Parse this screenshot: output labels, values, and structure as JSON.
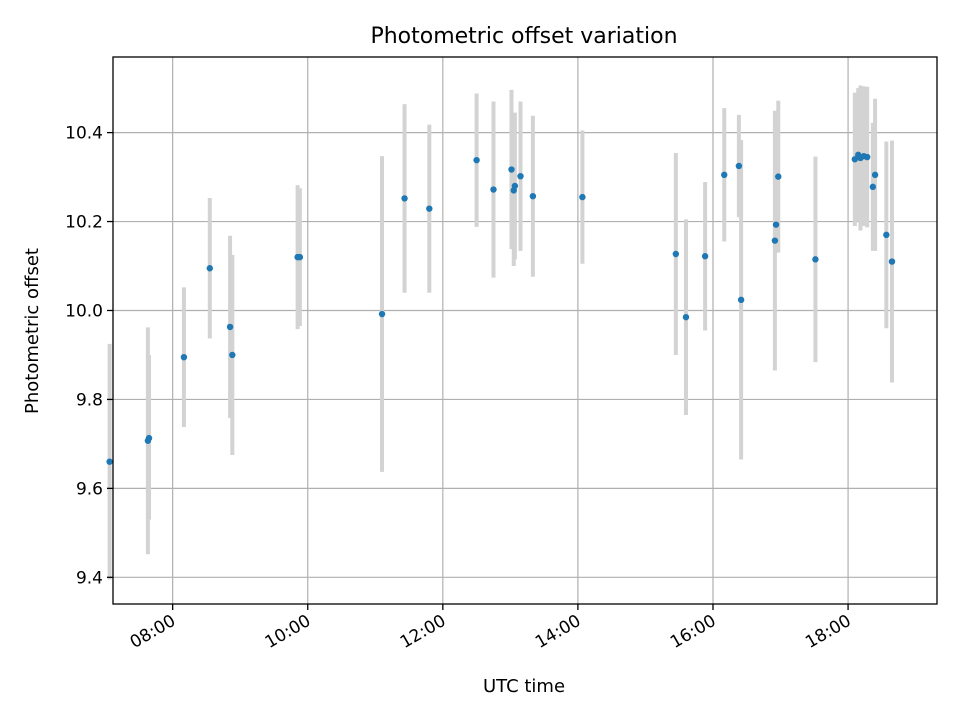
{
  "chart_data": {
    "type": "scatter",
    "title": "Photometric offset variation",
    "xlabel": "UTC time",
    "ylabel": "Photometric offset",
    "xlim": [
      "07:07",
      "19:19"
    ],
    "ylim": [
      9.34,
      10.57
    ],
    "x_ticks": [
      "08:00",
      "10:00",
      "12:00",
      "14:00",
      "16:00",
      "18:00"
    ],
    "y_ticks": [
      "9.4",
      "9.6",
      "9.8",
      "10.0",
      "10.2",
      "10.4"
    ],
    "grid": true,
    "marker_color": "#1f77b4",
    "errorbar_color": "#d3d3d3",
    "points": [
      {
        "t": "07:04",
        "y": 9.66,
        "lo": 9.395,
        "hi": 9.925
      },
      {
        "t": "07:38",
        "y": 9.707,
        "lo": 9.452,
        "hi": 9.962
      },
      {
        "t": "07:39",
        "y": 9.713,
        "lo": 9.53,
        "hi": 9.9
      },
      {
        "t": "08:10",
        "y": 9.895,
        "lo": 9.738,
        "hi": 10.052
      },
      {
        "t": "08:33",
        "y": 10.095,
        "lo": 9.937,
        "hi": 10.253
      },
      {
        "t": "08:51",
        "y": 9.963,
        "lo": 9.758,
        "hi": 10.168
      },
      {
        "t": "08:53",
        "y": 9.9,
        "lo": 9.675,
        "hi": 10.125
      },
      {
        "t": "09:51",
        "y": 10.12,
        "lo": 9.958,
        "hi": 10.282
      },
      {
        "t": "09:53",
        "y": 10.12,
        "lo": 9.965,
        "hi": 10.275
      },
      {
        "t": "11:06",
        "y": 9.992,
        "lo": 9.637,
        "hi": 10.347
      },
      {
        "t": "11:26",
        "y": 10.252,
        "lo": 10.04,
        "hi": 10.464
      },
      {
        "t": "11:48",
        "y": 10.229,
        "lo": 10.04,
        "hi": 10.418
      },
      {
        "t": "12:30",
        "y": 10.338,
        "lo": 10.188,
        "hi": 10.488
      },
      {
        "t": "12:45",
        "y": 10.272,
        "lo": 10.074,
        "hi": 10.47
      },
      {
        "t": "13:01",
        "y": 10.317,
        "lo": 10.138,
        "hi": 10.496
      },
      {
        "t": "13:03",
        "y": 10.27,
        "lo": 10.1,
        "hi": 10.44
      },
      {
        "t": "13:04",
        "y": 10.28,
        "lo": 10.115,
        "hi": 10.445
      },
      {
        "t": "13:09",
        "y": 10.302,
        "lo": 10.134,
        "hi": 10.47
      },
      {
        "t": "13:20",
        "y": 10.257,
        "lo": 10.076,
        "hi": 10.438
      },
      {
        "t": "14:04",
        "y": 10.255,
        "lo": 10.105,
        "hi": 10.405
      },
      {
        "t": "15:27",
        "y": 10.127,
        "lo": 9.9,
        "hi": 10.354
      },
      {
        "t": "15:36",
        "y": 9.985,
        "lo": 9.765,
        "hi": 10.205
      },
      {
        "t": "15:53",
        "y": 10.122,
        "lo": 9.955,
        "hi": 10.289
      },
      {
        "t": "16:10",
        "y": 10.305,
        "lo": 10.155,
        "hi": 10.455
      },
      {
        "t": "16:23",
        "y": 10.325,
        "lo": 10.21,
        "hi": 10.44
      },
      {
        "t": "16:25",
        "y": 10.024,
        "lo": 9.665,
        "hi": 10.383
      },
      {
        "t": "16:55",
        "y": 10.157,
        "lo": 9.865,
        "hi": 10.449
      },
      {
        "t": "16:56",
        "y": 10.193,
        "lo": 10.13,
        "hi": 10.256
      },
      {
        "t": "16:58",
        "y": 10.301,
        "lo": 10.13,
        "hi": 10.472
      },
      {
        "t": "17:31",
        "y": 10.115,
        "lo": 9.884,
        "hi": 10.346
      },
      {
        "t": "18:06",
        "y": 10.34,
        "lo": 10.19,
        "hi": 10.49
      },
      {
        "t": "18:09",
        "y": 10.35,
        "lo": 10.2,
        "hi": 10.5
      },
      {
        "t": "18:11",
        "y": 10.343,
        "lo": 10.18,
        "hi": 10.506
      },
      {
        "t": "18:14",
        "y": 10.347,
        "lo": 10.19,
        "hi": 10.504
      },
      {
        "t": "18:17",
        "y": 10.345,
        "lo": 10.187,
        "hi": 10.503
      },
      {
        "t": "18:22",
        "y": 10.278,
        "lo": 10.134,
        "hi": 10.422
      },
      {
        "t": "18:24",
        "y": 10.305,
        "lo": 10.134,
        "hi": 10.476
      },
      {
        "t": "18:34",
        "y": 10.17,
        "lo": 9.96,
        "hi": 10.38
      },
      {
        "t": "18:39",
        "y": 10.11,
        "lo": 9.838,
        "hi": 10.382
      }
    ]
  }
}
